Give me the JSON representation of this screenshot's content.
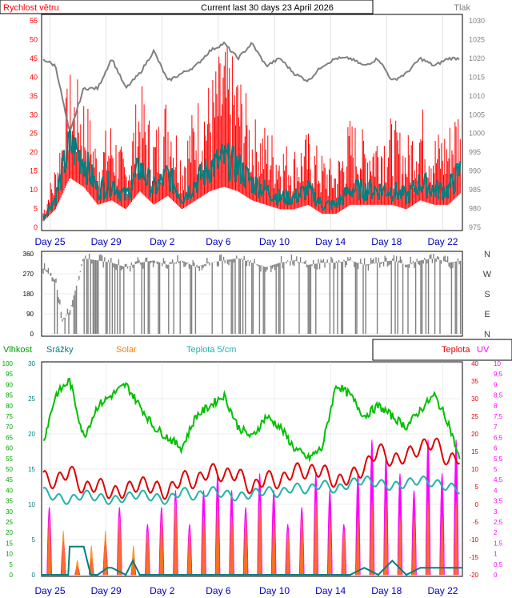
{
  "header": {
    "title": "Current last 30 days 23 April 2026",
    "wind_label": "Rychlost větru",
    "pressure_label": "Tlak"
  },
  "bottom_header": {
    "humidity": "Vlhkost",
    "rain": "Srážky",
    "solar": "Solar",
    "soil": "Teplota 5/cm",
    "temp": "Teplota",
    "uv": "UV"
  },
  "colors": {
    "wind_gust": "#ff0000",
    "wind_avg": "#008080",
    "pressure": "#808080",
    "direction": "#808080",
    "humidity": "#00c000",
    "rain": "#008080",
    "solar": "#ff8000",
    "soil": "#20b2aa",
    "temp": "#e00000",
    "uv": "#ff00ff",
    "date_label": "#0000c0"
  },
  "chart_data": [
    {
      "type": "line",
      "title": "Current last 30 days 23 April 2026",
      "ylabel": "Rychlost větru",
      "y2label": "Tlak",
      "ylim": [
        0,
        55
      ],
      "y2lim": [
        975,
        1030
      ],
      "yticks": [
        0,
        5,
        10,
        15,
        20,
        25,
        30,
        35,
        40,
        45,
        50,
        55
      ],
      "y2ticks": [
        975,
        980,
        985,
        990,
        995,
        1000,
        1005,
        1010,
        1015,
        1020,
        1025,
        1030
      ],
      "xlim": [
        0,
        30
      ],
      "xticks": [
        {
          "x": 0.6,
          "label": "Day 25"
        },
        {
          "x": 4.6,
          "label": "Day 29"
        },
        {
          "x": 8.6,
          "label": "Day 2"
        },
        {
          "x": 12.6,
          "label": "Day 6"
        },
        {
          "x": 16.6,
          "label": "Day 10"
        },
        {
          "x": 20.6,
          "label": "Day 14"
        },
        {
          "x": 24.6,
          "label": "Day 18"
        },
        {
          "x": 28.6,
          "label": "Day 22"
        }
      ],
      "series": [
        {
          "key": "gust",
          "x": [
            0,
            1,
            2,
            3,
            4,
            5,
            6,
            7,
            8,
            9,
            10,
            11,
            12,
            13,
            14,
            15,
            16,
            17,
            18,
            19,
            20,
            21,
            22,
            23,
            24,
            25,
            26,
            27,
            28,
            29,
            30
          ],
          "values": [
            4,
            18,
            42,
            38,
            22,
            30,
            18,
            40,
            26,
            38,
            22,
            35,
            40,
            50,
            44,
            30,
            28,
            24,
            22,
            26,
            20,
            18,
            30,
            26,
            28,
            30,
            24,
            34,
            26,
            28,
            38
          ]
        },
        {
          "key": "avg",
          "x": [
            0,
            1,
            2,
            3,
            4,
            5,
            6,
            7,
            8,
            9,
            10,
            11,
            12,
            13,
            14,
            15,
            16,
            17,
            18,
            19,
            20,
            21,
            22,
            23,
            24,
            25,
            26,
            27,
            28,
            29,
            30
          ],
          "values": [
            2,
            8,
            22,
            18,
            10,
            12,
            8,
            16,
            10,
            14,
            8,
            12,
            16,
            18,
            16,
            12,
            10,
            8,
            8,
            10,
            6,
            6,
            10,
            10,
            10,
            10,
            8,
            12,
            10,
            10,
            16
          ]
        },
        {
          "key": "pressure",
          "x": [
            0,
            1,
            2,
            3,
            4,
            5,
            6,
            7,
            8,
            9,
            10,
            11,
            12,
            13,
            14,
            15,
            16,
            17,
            18,
            19,
            20,
            21,
            22,
            23,
            24,
            25,
            26,
            27,
            28,
            29,
            30
          ],
          "values": [
            1020,
            1018,
            1000,
            1012,
            1012,
            1020,
            1012,
            1016,
            1022,
            1014,
            1016,
            1018,
            1022,
            1024,
            1020,
            1024,
            1018,
            1020,
            1016,
            1014,
            1018,
            1020,
            1020,
            1018,
            1020,
            1014,
            1016,
            1020,
            1018,
            1020,
            1020
          ]
        }
      ]
    },
    {
      "type": "line",
      "ylabel": "Wind direction",
      "ylim": [
        0,
        360
      ],
      "yticks": [
        0,
        90,
        180,
        270,
        360
      ],
      "compass": [
        "N",
        "W",
        "S",
        "E",
        "N"
      ],
      "xlim": [
        0,
        30
      ],
      "series": [
        {
          "key": "direction",
          "x": [
            0,
            1,
            1.5,
            2,
            3,
            4,
            5,
            6,
            7,
            8,
            9,
            10,
            11,
            12,
            13,
            14,
            15,
            16,
            17,
            18,
            19,
            20,
            21,
            22,
            23,
            24,
            25,
            26,
            27,
            28,
            29,
            30
          ],
          "values": [
            300,
            240,
            60,
            100,
            340,
            330,
            320,
            300,
            320,
            330,
            310,
            330,
            300,
            320,
            330,
            340,
            320,
            300,
            320,
            330,
            310,
            320,
            320,
            330,
            310,
            320,
            330,
            310,
            330,
            340,
            320,
            330
          ]
        }
      ]
    },
    {
      "type": "line",
      "ylabel": "Vlhkost",
      "ylim": [
        0,
        100
      ],
      "yticks": [
        0,
        5,
        10,
        15,
        20,
        25,
        30,
        35,
        40,
        45,
        50,
        55,
        60,
        65,
        70,
        75,
        80,
        85,
        90,
        95,
        100
      ],
      "rain_ticks": [
        0,
        5,
        10,
        15,
        20,
        25,
        30
      ],
      "temp_ticks": [
        -20,
        -15,
        -10,
        -5,
        0,
        5,
        10,
        15,
        20,
        25,
        30,
        35,
        40
      ],
      "uv_ticks": [
        0,
        0.5,
        1,
        1.5,
        2,
        2.5,
        3,
        3.5,
        4,
        4.5,
        5,
        5.5,
        6,
        6.5,
        7,
        7.5,
        8,
        8.5,
        9,
        9.5,
        10
      ],
      "xlim": [
        0,
        30
      ],
      "series": [
        {
          "key": "humidity",
          "x": [
            0,
            1,
            2,
            3,
            4,
            5,
            6,
            7,
            8,
            9,
            10,
            11,
            12,
            13,
            14,
            15,
            16,
            17,
            18,
            19,
            20,
            21,
            22,
            23,
            24,
            25,
            26,
            27,
            28,
            29,
            30
          ],
          "values": [
            60,
            85,
            92,
            65,
            80,
            85,
            90,
            80,
            70,
            65,
            60,
            75,
            80,
            85,
            70,
            65,
            75,
            70,
            60,
            55,
            60,
            90,
            85,
            75,
            80,
            75,
            70,
            78,
            85,
            72,
            50
          ]
        },
        {
          "key": "rain",
          "x": [
            0,
            1,
            1.9,
            2,
            3,
            3.5,
            4,
            4.7,
            5,
            6,
            6.5,
            7,
            8,
            9,
            10,
            11,
            12,
            13,
            14,
            15,
            16,
            17,
            18,
            19,
            20,
            21,
            22,
            23,
            24,
            25,
            26,
            27,
            28,
            29,
            30
          ],
          "values": [
            0,
            0,
            0,
            4,
            4,
            0,
            0,
            1,
            1,
            0,
            2,
            0,
            0,
            0,
            0,
            0,
            0,
            0,
            0,
            0,
            0,
            0,
            0,
            0,
            0,
            0,
            0,
            1,
            0,
            2,
            0,
            1,
            1,
            1,
            1
          ]
        },
        {
          "key": "temp",
          "x": [
            0,
            1,
            2,
            3,
            4,
            5,
            6,
            7,
            8,
            9,
            10,
            11,
            12,
            13,
            14,
            15,
            16,
            17,
            18,
            19,
            20,
            21,
            22,
            23,
            24,
            25,
            26,
            27,
            28,
            29,
            30
          ],
          "values": [
            8,
            6,
            10,
            4,
            6,
            3,
            4,
            6,
            5,
            3,
            8,
            6,
            10,
            8,
            9,
            4,
            8,
            6,
            10,
            9,
            10,
            6,
            8,
            10,
            16,
            12,
            14,
            16,
            18,
            12,
            14
          ]
        },
        {
          "key": "soil",
          "x": [
            0,
            1,
            2,
            3,
            4,
            5,
            6,
            7,
            8,
            9,
            10,
            11,
            12,
            13,
            14,
            15,
            16,
            17,
            18,
            19,
            20,
            21,
            22,
            23,
            24,
            25,
            26,
            27,
            28,
            29,
            30
          ],
          "values": [
            4,
            2,
            1,
            3,
            2,
            1,
            2,
            3,
            2,
            1,
            4,
            2,
            4,
            3,
            2,
            3,
            4,
            3,
            5,
            4,
            6,
            4,
            6,
            7,
            6,
            5,
            6,
            7,
            6,
            5,
            4
          ]
        },
        {
          "key": "uv",
          "x": [
            0,
            1,
            2,
            3,
            4,
            5,
            6,
            7,
            8,
            9,
            10,
            11,
            12,
            13,
            14,
            15,
            16,
            17,
            18,
            19,
            20,
            21,
            22,
            23,
            24,
            25,
            26,
            27,
            28,
            29,
            30
          ],
          "values": [
            4,
            2,
            0.5,
            1,
            2,
            4,
            1,
            3,
            4,
            5,
            3,
            5,
            6,
            5,
            4,
            6,
            5,
            3,
            4,
            6,
            5,
            3,
            6,
            8,
            7,
            6,
            5,
            8,
            6,
            8,
            5
          ]
        },
        {
          "key": "solar",
          "x": [
            0,
            1,
            2,
            3,
            4,
            5,
            6,
            7,
            8,
            9,
            10,
            11,
            12,
            13,
            14,
            15,
            16,
            17,
            18,
            19,
            20,
            21,
            22,
            23,
            24,
            25,
            26,
            27,
            28,
            29,
            30
          ],
          "values": [
            4,
            3,
            1,
            2,
            3,
            4,
            2,
            3,
            4,
            5,
            3,
            4,
            5,
            4,
            4,
            5,
            4,
            3,
            4,
            5,
            4,
            3,
            4,
            5,
            5,
            4,
            4,
            5,
            4,
            5,
            4
          ]
        }
      ]
    }
  ]
}
